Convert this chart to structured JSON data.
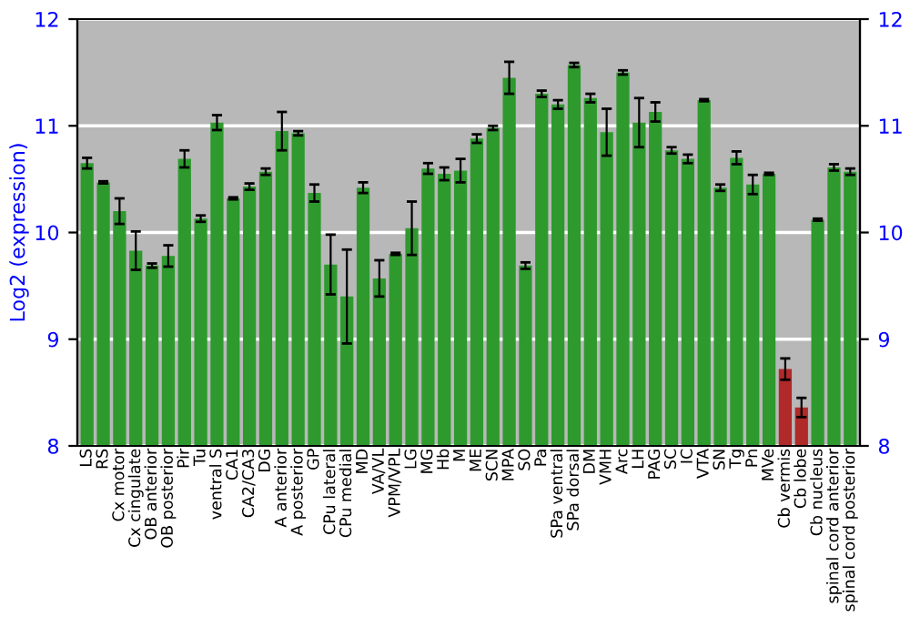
{
  "chart_data": {
    "type": "bar",
    "ylabel": "Log2 (expression)",
    "categories": [
      "LS",
      "RS",
      "Cx motor",
      "Cx cingulate",
      "OB anterior",
      "OB posterior",
      "Pir",
      "Tu",
      "ventral S",
      "CA1",
      "CA2/CA3",
      "DG",
      "A anterior",
      "A posterior",
      "GP",
      "CPu lateral",
      "CPu medial",
      "MD",
      "VA/VL",
      "VPM/VPL",
      "LG",
      "MG",
      "Hb",
      "M",
      "ME",
      "SCN",
      "MPA",
      "SO",
      "Pa",
      "SPa ventral",
      "SPa dorsal",
      "DM",
      "VMH",
      "Arc",
      "LH",
      "PAG",
      "SC",
      "IC",
      "VTA",
      "SN",
      "Tg",
      "Pn",
      "MVe",
      "Cb vermis",
      "Cb lobe",
      "Cb nucleus",
      "spinal cord anterior",
      "spinal cord posterior"
    ],
    "values": [
      10.65,
      10.47,
      10.2,
      9.83,
      9.69,
      9.78,
      10.69,
      10.13,
      11.03,
      10.32,
      10.43,
      10.57,
      10.95,
      10.93,
      10.37,
      9.7,
      9.4,
      10.42,
      9.57,
      9.8,
      10.04,
      10.6,
      10.55,
      10.58,
      10.88,
      10.98,
      11.45,
      9.69,
      11.3,
      11.2,
      11.57,
      11.26,
      10.94,
      11.5,
      11.03,
      11.13,
      10.77,
      10.69,
      11.24,
      10.42,
      10.7,
      10.45,
      10.55,
      8.72,
      8.36,
      10.12,
      10.61,
      10.57
    ],
    "errors": [
      0.05,
      0.01,
      0.12,
      0.18,
      0.02,
      0.1,
      0.08,
      0.03,
      0.07,
      0.01,
      0.03,
      0.03,
      0.18,
      0.02,
      0.08,
      0.28,
      0.44,
      0.05,
      0.17,
      0.01,
      0.25,
      0.05,
      0.06,
      0.11,
      0.04,
      0.02,
      0.15,
      0.03,
      0.03,
      0.04,
      0.02,
      0.04,
      0.22,
      0.02,
      0.23,
      0.09,
      0.03,
      0.04,
      0.01,
      0.03,
      0.06,
      0.09,
      0.01,
      0.1,
      0.09,
      0.01,
      0.03,
      0.03
    ],
    "colors": [
      "#2e9a2e",
      "#2e9a2e",
      "#2e9a2e",
      "#2e9a2e",
      "#2e9a2e",
      "#2e9a2e",
      "#2e9a2e",
      "#2e9a2e",
      "#2e9a2e",
      "#2e9a2e",
      "#2e9a2e",
      "#2e9a2e",
      "#2e9a2e",
      "#2e9a2e",
      "#2e9a2e",
      "#2e9a2e",
      "#2e9a2e",
      "#2e9a2e",
      "#2e9a2e",
      "#2e9a2e",
      "#2e9a2e",
      "#2e9a2e",
      "#2e9a2e",
      "#2e9a2e",
      "#2e9a2e",
      "#2e9a2e",
      "#2e9a2e",
      "#2e9a2e",
      "#2e9a2e",
      "#2e9a2e",
      "#2e9a2e",
      "#2e9a2e",
      "#2e9a2e",
      "#2e9a2e",
      "#2e9a2e",
      "#2e9a2e",
      "#2e9a2e",
      "#2e9a2e",
      "#2e9a2e",
      "#2e9a2e",
      "#2e9a2e",
      "#2e9a2e",
      "#2e9a2e",
      "#b02a2a",
      "#b02a2a",
      "#2e9a2e",
      "#2e9a2e",
      "#2e9a2e"
    ],
    "ylim": [
      8,
      12
    ],
    "yticks": [
      8,
      9,
      10,
      11,
      12
    ],
    "y2lim": [
      8,
      12
    ],
    "y2ticks": [
      8,
      9,
      10,
      11,
      12
    ],
    "grid": "y"
  }
}
